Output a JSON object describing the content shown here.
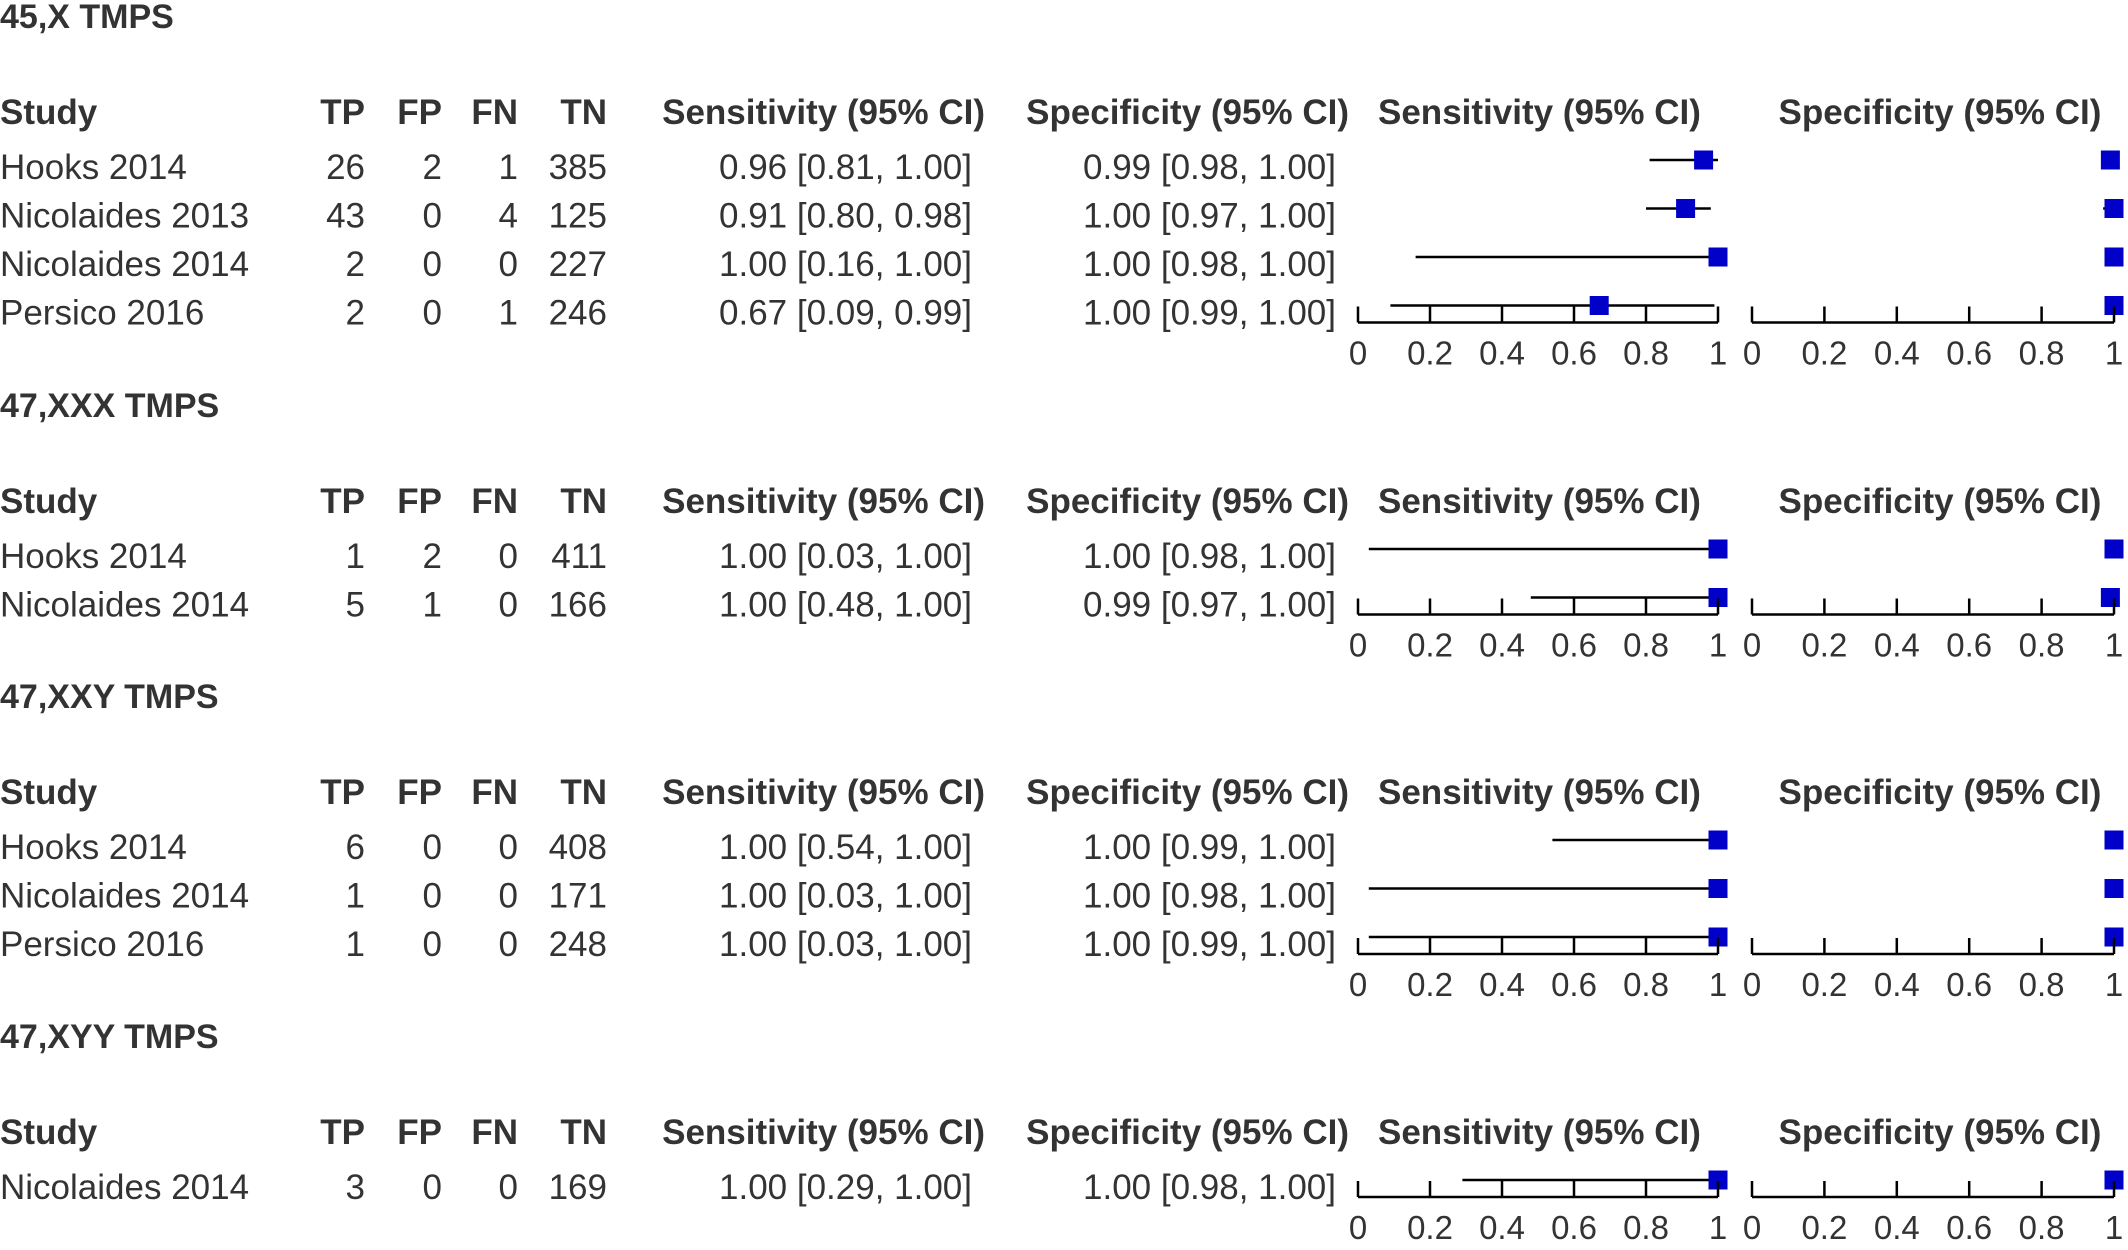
{
  "colors": {
    "marker": "#0000c8",
    "line": "#000000",
    "text": "#333333"
  },
  "headers": {
    "study": "Study",
    "tp": "TP",
    "fp": "FP",
    "fn": "FN",
    "tn": "TN",
    "sensitivity": "Sensitivity (95% CI)",
    "specificity": "Specificity (95% CI)",
    "sens_plot": "Sensitivity (95% CI)",
    "spec_plot": "Specificity (95% CI)"
  },
  "axis": {
    "min": 0,
    "max": 1,
    "ticks": [
      "0",
      "0.2",
      "0.4",
      "0.6",
      "0.8",
      "1"
    ]
  },
  "chart_data": {
    "type": "forest",
    "sections": [
      {
        "title": "45,X TMPS",
        "studies": [
          {
            "study": "Hooks 2014",
            "tp": "26",
            "fp": "2",
            "fn": "1",
            "tn": "385",
            "sens_text": "0.96 [0.81, 1.00]",
            "spec_text": "0.99 [0.98, 1.00]",
            "sens": 0.96,
            "sens_lo": 0.81,
            "sens_hi": 1.0,
            "spec": 0.99,
            "spec_lo": 0.98,
            "spec_hi": 1.0
          },
          {
            "study": "Nicolaides 2013",
            "tp": "43",
            "fp": "0",
            "fn": "4",
            "tn": "125",
            "sens_text": "0.91 [0.80, 0.98]",
            "spec_text": "1.00 [0.97, 1.00]",
            "sens": 0.91,
            "sens_lo": 0.8,
            "sens_hi": 0.98,
            "spec": 1.0,
            "spec_lo": 0.97,
            "spec_hi": 1.0
          },
          {
            "study": "Nicolaides 2014",
            "tp": "2",
            "fp": "0",
            "fn": "0",
            "tn": "227",
            "sens_text": "1.00 [0.16, 1.00]",
            "spec_text": "1.00 [0.98, 1.00]",
            "sens": 1.0,
            "sens_lo": 0.16,
            "sens_hi": 1.0,
            "spec": 1.0,
            "spec_lo": 0.98,
            "spec_hi": 1.0
          },
          {
            "study": "Persico 2016",
            "tp": "2",
            "fp": "0",
            "fn": "1",
            "tn": "246",
            "sens_text": "0.67 [0.09, 0.99]",
            "spec_text": "1.00 [0.99, 1.00]",
            "sens": 0.67,
            "sens_lo": 0.09,
            "sens_hi": 0.99,
            "spec": 1.0,
            "spec_lo": 0.99,
            "spec_hi": 1.0
          }
        ]
      },
      {
        "title": "47,XXX TMPS",
        "studies": [
          {
            "study": "Hooks 2014",
            "tp": "1",
            "fp": "2",
            "fn": "0",
            "tn": "411",
            "sens_text": "1.00 [0.03, 1.00]",
            "spec_text": "1.00 [0.98, 1.00]",
            "sens": 1.0,
            "sens_lo": 0.03,
            "sens_hi": 1.0,
            "spec": 1.0,
            "spec_lo": 0.98,
            "spec_hi": 1.0
          },
          {
            "study": "Nicolaides 2014",
            "tp": "5",
            "fp": "1",
            "fn": "0",
            "tn": "166",
            "sens_text": "1.00 [0.48, 1.00]",
            "spec_text": "0.99 [0.97, 1.00]",
            "sens": 1.0,
            "sens_lo": 0.48,
            "sens_hi": 1.0,
            "spec": 0.99,
            "spec_lo": 0.97,
            "spec_hi": 1.0
          }
        ]
      },
      {
        "title": "47,XXY TMPS",
        "studies": [
          {
            "study": "Hooks 2014",
            "tp": "6",
            "fp": "0",
            "fn": "0",
            "tn": "408",
            "sens_text": "1.00 [0.54, 1.00]",
            "spec_text": "1.00 [0.99, 1.00]",
            "sens": 1.0,
            "sens_lo": 0.54,
            "sens_hi": 1.0,
            "spec": 1.0,
            "spec_lo": 0.99,
            "spec_hi": 1.0
          },
          {
            "study": "Nicolaides 2014",
            "tp": "1",
            "fp": "0",
            "fn": "0",
            "tn": "171",
            "sens_text": "1.00 [0.03, 1.00]",
            "spec_text": "1.00 [0.98, 1.00]",
            "sens": 1.0,
            "sens_lo": 0.03,
            "sens_hi": 1.0,
            "spec": 1.0,
            "spec_lo": 0.98,
            "spec_hi": 1.0
          },
          {
            "study": "Persico 2016",
            "tp": "1",
            "fp": "0",
            "fn": "0",
            "tn": "248",
            "sens_text": "1.00 [0.03, 1.00]",
            "spec_text": "1.00 [0.99, 1.00]",
            "sens": 1.0,
            "sens_lo": 0.03,
            "sens_hi": 1.0,
            "spec": 1.0,
            "spec_lo": 0.99,
            "spec_hi": 1.0
          }
        ]
      },
      {
        "title": "47,XYY TMPS",
        "studies": [
          {
            "study": "Nicolaides 2014",
            "tp": "3",
            "fp": "0",
            "fn": "0",
            "tn": "169",
            "sens_text": "1.00 [0.29, 1.00]",
            "spec_text": "1.00 [0.98, 1.00]",
            "sens": 1.0,
            "sens_lo": 0.29,
            "sens_hi": 1.0,
            "spec": 1.0,
            "spec_lo": 0.98,
            "spec_hi": 1.0
          }
        ]
      }
    ]
  }
}
